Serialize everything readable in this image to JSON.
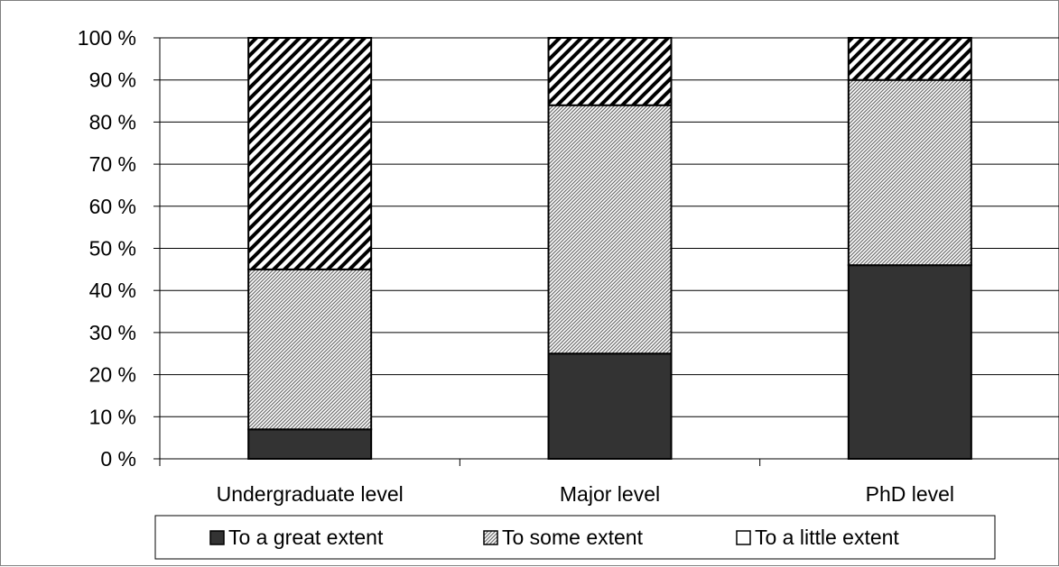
{
  "chart_data": {
    "type": "bar",
    "stacked": true,
    "normalized": true,
    "categories": [
      "Undergraduate level",
      "Major level",
      "PhD level"
    ],
    "series": [
      {
        "name": "To a great extent",
        "values": [
          7,
          25,
          46
        ],
        "pattern": "solid",
        "color": "#333333"
      },
      {
        "name": "To some extent",
        "values": [
          38,
          59,
          44
        ],
        "pattern": "fine-hatch",
        "color": "#777777"
      },
      {
        "name": "To a little extent",
        "values": [
          55,
          16,
          10
        ],
        "pattern": "bold-hatch",
        "color": "#000000"
      }
    ],
    "y_ticks": [
      "0 %",
      "10 %",
      "20 %",
      "30 %",
      "40 %",
      "50 %",
      "60 %",
      "70 %",
      "80 %",
      "90 %",
      "100 %"
    ],
    "ylim": [
      0,
      100
    ],
    "grid": true,
    "legend_position": "bottom"
  }
}
